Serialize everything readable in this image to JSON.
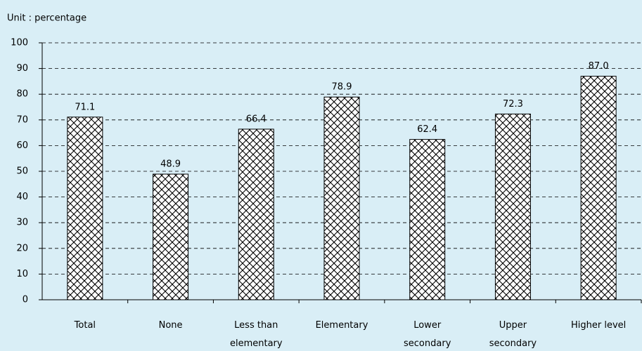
{
  "chart_data": {
    "type": "bar",
    "unit_label": "Unit : percentage",
    "categories": [
      "Total",
      "None",
      "Less than elementary",
      "Elementary",
      "Lower secondary",
      "Upper secondary",
      "Higher level"
    ],
    "values": [
      71.1,
      48.9,
      66.4,
      78.9,
      62.4,
      72.3,
      87.0
    ],
    "value_labels": [
      "71.1",
      "48.9",
      "66.4",
      "78.9",
      "62.4",
      "72.3",
      "87.0"
    ],
    "color": "#000000",
    "ylim": [
      0,
      100
    ],
    "yticks": [
      0,
      10,
      20,
      30,
      40,
      50,
      60,
      70,
      80,
      90,
      100
    ],
    "grid": true
  }
}
